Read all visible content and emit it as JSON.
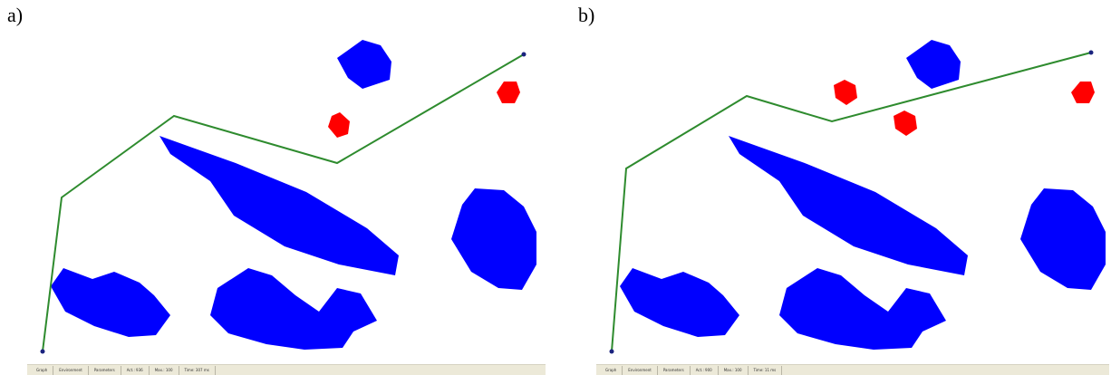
{
  "panels": [
    {
      "label": "a)",
      "status": {
        "tab_graph": "Graph",
        "tab_environment": "Environment",
        "tab_parameters": "Parameters",
        "act": "Act.: 936",
        "max": "Max.: 100",
        "time": "Time: 307 ms"
      }
    },
    {
      "label": "b)",
      "status": {
        "tab_graph": "Graph",
        "tab_environment": "Environment",
        "tab_parameters": "Parameters",
        "act": "Act.: 900",
        "max": "Max.: 100",
        "time": "Time: 11 ms"
      }
    }
  ],
  "colors": {
    "static_obstacle": "#0000ff",
    "dynamic_obstacle": "#ff0000",
    "path": "#2e8b2e",
    "endpoint": "#1a237e"
  }
}
